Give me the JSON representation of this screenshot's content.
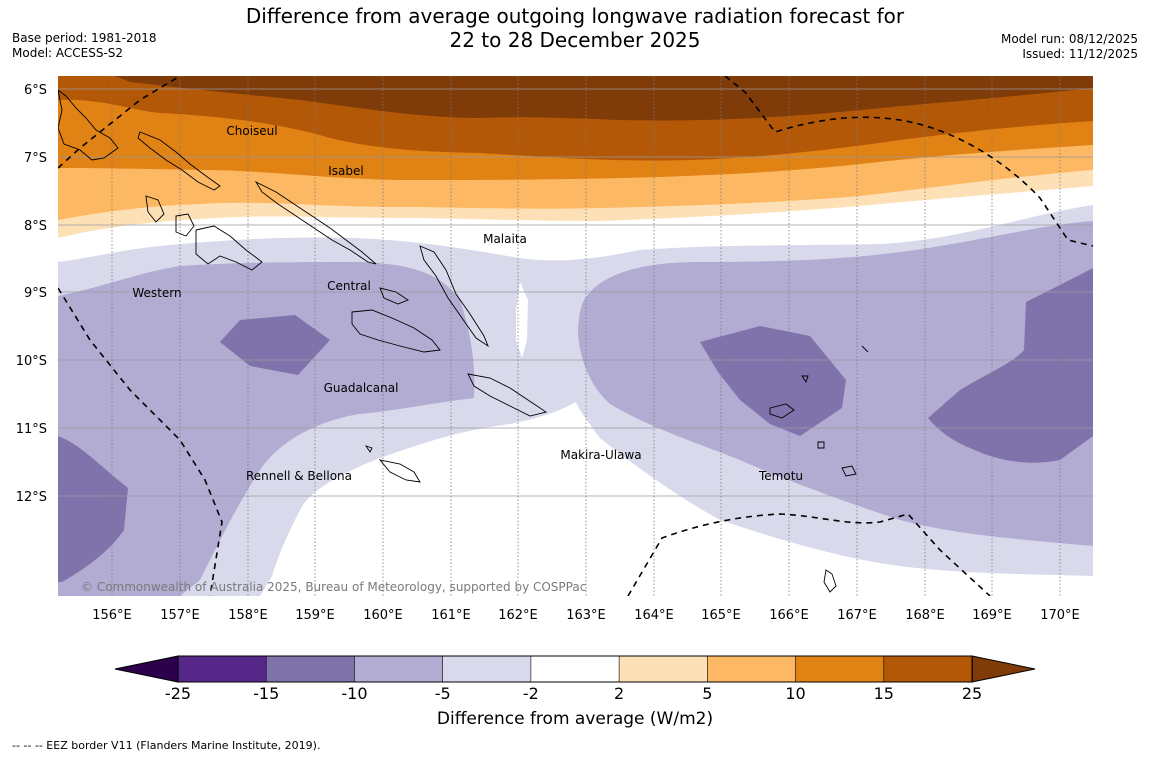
{
  "title": {
    "line1": "Difference from average outgoing longwave radiation forecast for",
    "line2": "22 to 28 December 2025"
  },
  "meta": {
    "base_period": "Base period: 1981-2018",
    "model": "Model: ACCESS-S2",
    "model_run": "Model run: 08/12/2025",
    "issued": "Issued: 11/12/2025"
  },
  "axes": {
    "lat_labels": [
      "6°S",
      "7°S",
      "8°S",
      "9°S",
      "10°S",
      "11°S",
      "12°S"
    ],
    "lon_labels": [
      "156°E",
      "157°E",
      "158°E",
      "159°E",
      "160°E",
      "161°E",
      "162°E",
      "163°E",
      "164°E",
      "165°E",
      "166°E",
      "167°E",
      "168°E",
      "169°E",
      "170°E"
    ]
  },
  "regions": [
    {
      "name": "Choiseul"
    },
    {
      "name": "Isabel"
    },
    {
      "name": "Malaita"
    },
    {
      "name": "Central"
    },
    {
      "name": "Western"
    },
    {
      "name": "Guadalcanal"
    },
    {
      "name": "Makira-Ulawa"
    },
    {
      "name": "Rennell & Bellona"
    },
    {
      "name": "Temotu"
    }
  ],
  "copyright": "© Commonwealth of Australia 2025, Bureau of Meteorology, supported by COSPPac",
  "colorbar": {
    "label": "Difference from average (W/m2)",
    "ticks": [
      "-25",
      "-15",
      "-10",
      "-5",
      "-2",
      "2",
      "5",
      "10",
      "15",
      "25"
    ],
    "colors": [
      "#542788",
      "#8073ac",
      "#b2abd2",
      "#d8daeb",
      "#ffffff",
      "#fee0b6",
      "#fdb863",
      "#e08214",
      "#b35806"
    ],
    "under_color": "#2d004b",
    "over_color": "#7f3b08"
  },
  "legend": {
    "eez": "-- -- -- EEZ border V11 (Flanders Marine Institute, 2019)."
  }
}
